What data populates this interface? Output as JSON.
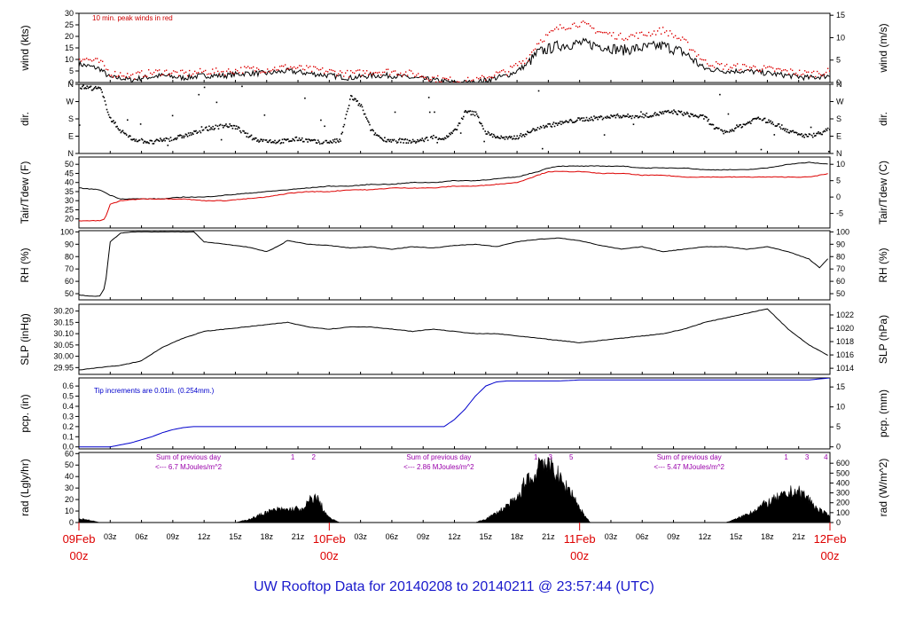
{
  "title": "UW Rooftop Data for 20140208  to  20140211 @ 23:57:44  (UTC)",
  "colors": {
    "main": "#000000",
    "peak": "#dd0000",
    "dew": "#dd0000",
    "precip": "#0000cc",
    "annot_wind": "#cc0000",
    "annot_pcp": "#0000cc",
    "annot_rad": "#9900aa",
    "date": "#dd0000",
    "title": "#1a1acc"
  },
  "x_axis": {
    "range_hours": [
      0,
      72
    ],
    "day_labels": [
      {
        "day": "09Feb",
        "hour": "00z",
        "t": 0
      },
      {
        "day": "10Feb",
        "hour": "00z",
        "t": 24
      },
      {
        "day": "11Feb",
        "hour": "00z",
        "t": 48
      },
      {
        "day": "12Feb",
        "hour": "00z",
        "t": 72
      }
    ],
    "hour_ticks": [
      "03z",
      "06z",
      "09z",
      "12z",
      "15z",
      "18z",
      "21z"
    ]
  },
  "chart_data": [
    {
      "type": "line",
      "name": "wind",
      "ylabel": "wind (kts)",
      "ylabel_right": "wind (m/s)",
      "ylim": [
        0,
        30
      ],
      "yticks": [
        0,
        5,
        10,
        15,
        20,
        25,
        30
      ],
      "yticks_right": [
        0,
        5,
        10,
        15
      ],
      "right_scale": 0.5144,
      "annotation": "10 min. peak winds in red",
      "series": [
        {
          "name": "wind",
          "x": [
            0,
            1,
            2,
            3,
            4,
            5,
            6,
            8,
            10,
            12,
            14,
            16,
            18,
            20,
            22,
            24,
            26,
            28,
            30,
            32,
            34,
            36,
            38,
            40,
            41,
            42,
            43,
            44,
            46,
            48,
            50,
            52,
            54,
            56,
            58,
            60,
            62,
            64,
            66,
            68,
            70,
            72
          ],
          "y": [
            8,
            7,
            6,
            2,
            2,
            1,
            2,
            3,
            2,
            3,
            3,
            4,
            4,
            5,
            4,
            3,
            2,
            3,
            3,
            2,
            1,
            0,
            0,
            2,
            3,
            5,
            8,
            13,
            16,
            17,
            16,
            14,
            15,
            16,
            13,
            6,
            5,
            5,
            4,
            3,
            2,
            3
          ]
        },
        {
          "name": "10 min. peak winds",
          "x": [
            0,
            1,
            2,
            3,
            4,
            5,
            6,
            8,
            10,
            12,
            14,
            16,
            18,
            20,
            22,
            24,
            26,
            28,
            30,
            32,
            34,
            36,
            38,
            40,
            41,
            42,
            43,
            44,
            46,
            48,
            50,
            52,
            54,
            56,
            58,
            60,
            62,
            64,
            66,
            68,
            70,
            72
          ],
          "y": [
            11,
            10,
            9,
            4,
            4,
            3,
            4,
            5,
            4,
            5,
            5,
            6,
            6,
            7,
            6,
            5,
            4,
            5,
            5,
            4,
            2,
            1,
            1,
            4,
            5,
            8,
            11,
            18,
            24,
            26,
            22,
            20,
            21,
            23,
            18,
            9,
            7,
            7,
            6,
            5,
            4,
            5
          ]
        }
      ]
    },
    {
      "type": "scatter",
      "name": "dir",
      "ylabel": "dir.",
      "ylabel_right": "dir.",
      "ylim": [
        0,
        360
      ],
      "ytick_values": [
        0,
        90,
        180,
        270,
        360
      ],
      "ytick_labels": [
        "N",
        "E",
        "S",
        "W",
        "N"
      ],
      "series": [
        {
          "name": "direction",
          "x": [
            0,
            1,
            2,
            3,
            4,
            5,
            6,
            7,
            8,
            9,
            10,
            11,
            12,
            13,
            14,
            15,
            16,
            17,
            18,
            19,
            20,
            21,
            22,
            23,
            24,
            25,
            26,
            27,
            28,
            29,
            30,
            31,
            32,
            33,
            34,
            35,
            36,
            37,
            38,
            39,
            40,
            41,
            42,
            43,
            44,
            45,
            46,
            47,
            48,
            49,
            50,
            51,
            52,
            53,
            54,
            55,
            56,
            57,
            58,
            59,
            60,
            61,
            62,
            63,
            64,
            65,
            66,
            67,
            68,
            69,
            70,
            71,
            72
          ],
          "y": [
            350,
            345,
            340,
            180,
            120,
            80,
            70,
            60,
            75,
            80,
            95,
            110,
            130,
            140,
            150,
            140,
            100,
            75,
            70,
            65,
            70,
            80,
            70,
            60,
            65,
            70,
            300,
            250,
            120,
            80,
            70,
            70,
            65,
            75,
            90,
            80,
            120,
            220,
            210,
            110,
            90,
            80,
            90,
            110,
            140,
            150,
            160,
            170,
            180,
            185,
            190,
            195,
            200,
            195,
            200,
            205,
            215,
            220,
            210,
            200,
            190,
            130,
            110,
            140,
            160,
            190,
            170,
            150,
            120,
            100,
            95,
            110,
            130
          ]
        }
      ]
    },
    {
      "type": "line",
      "name": "temp",
      "ylabel": "Tair/Tdew (F)",
      "ylabel_right": "Tair/Tdew (C)",
      "ylim": [
        15,
        54
      ],
      "yticks": [
        20,
        25,
        30,
        35,
        40,
        45,
        50
      ],
      "ytick_values_right_F": [
        23,
        32,
        41,
        50
      ],
      "yticks_right": [
        -5,
        0,
        5,
        10
      ],
      "series": [
        {
          "name": "Tair",
          "x": [
            0,
            2,
            3,
            4,
            6,
            8,
            10,
            12,
            14,
            16,
            18,
            20,
            22,
            24,
            26,
            28,
            30,
            32,
            34,
            36,
            38,
            40,
            42,
            44,
            45,
            46,
            48,
            50,
            52,
            54,
            56,
            58,
            60,
            62,
            64,
            66,
            68,
            70,
            72
          ],
          "y": [
            37,
            36,
            33,
            31,
            31,
            31,
            32,
            32,
            33,
            34,
            35,
            36,
            37,
            38,
            38,
            39,
            39,
            40,
            40,
            41,
            41,
            42,
            43,
            46,
            48,
            49,
            49,
            49,
            49,
            48,
            48,
            48,
            47,
            47,
            47,
            48,
            50,
            51,
            50
          ]
        },
        {
          "name": "Tdew",
          "x": [
            0,
            2,
            2.5,
            3,
            4,
            6,
            8,
            10,
            12,
            14,
            16,
            18,
            20,
            22,
            24,
            26,
            28,
            30,
            32,
            34,
            36,
            38,
            40,
            42,
            44,
            45,
            46,
            48,
            50,
            52,
            54,
            56,
            58,
            60,
            62,
            64,
            66,
            68,
            70,
            72
          ],
          "y": [
            19,
            19,
            20,
            28,
            30,
            31,
            31,
            31,
            30,
            30,
            31,
            32,
            34,
            35,
            35,
            36,
            36,
            37,
            37,
            37,
            38,
            38,
            39,
            40,
            44,
            46,
            46,
            46,
            45,
            45,
            44,
            44,
            43,
            43,
            43,
            43,
            43,
            43,
            43,
            45
          ]
        }
      ]
    },
    {
      "type": "line",
      "name": "rh",
      "ylabel": "RH (%)",
      "ylabel_right": "RH (%)",
      "ylim": [
        45,
        101
      ],
      "yticks": [
        50,
        60,
        70,
        80,
        90,
        100
      ],
      "series": [
        {
          "name": "RH",
          "x": [
            0,
            1,
            2,
            2.5,
            3,
            4,
            5,
            6,
            8,
            10,
            11,
            12,
            14,
            16,
            18,
            19,
            20,
            22,
            24,
            26,
            28,
            30,
            32,
            34,
            36,
            38,
            40,
            42,
            44,
            46,
            48,
            50,
            52,
            54,
            56,
            58,
            60,
            62,
            64,
            66,
            68,
            70,
            71,
            72
          ],
          "y": [
            49,
            48,
            48,
            55,
            92,
            99,
            100,
            100,
            100,
            100,
            100,
            92,
            90,
            88,
            84,
            88,
            93,
            90,
            89,
            87,
            88,
            86,
            88,
            87,
            89,
            90,
            88,
            92,
            94,
            95,
            93,
            89,
            86,
            88,
            84,
            86,
            88,
            88,
            86,
            88,
            84,
            78,
            71,
            80
          ]
        }
      ]
    },
    {
      "type": "line",
      "name": "slp",
      "ylabel": "SLP (inHg)",
      "ylabel_right": "SLP (hPa)",
      "ylim": [
        29.92,
        30.23
      ],
      "yticks": [
        29.95,
        30.0,
        30.05,
        30.1,
        30.15,
        30.2
      ],
      "ytick_values_right_inhg": [
        29.947,
        30.006,
        30.065,
        30.124,
        30.183
      ],
      "yticks_right": [
        1014,
        1016,
        1018,
        1020,
        1022
      ],
      "series": [
        {
          "name": "SLP",
          "x": [
            0,
            2,
            4,
            6,
            8,
            10,
            12,
            14,
            16,
            18,
            20,
            22,
            24,
            26,
            28,
            30,
            32,
            34,
            36,
            38,
            40,
            42,
            44,
            46,
            48,
            50,
            52,
            54,
            56,
            58,
            60,
            62,
            64,
            66,
            68,
            70,
            72
          ],
          "y": [
            29.94,
            29.95,
            29.96,
            29.98,
            30.04,
            30.08,
            30.11,
            30.12,
            30.13,
            30.14,
            30.15,
            30.13,
            30.12,
            30.13,
            30.13,
            30.12,
            30.11,
            30.12,
            30.11,
            30.1,
            30.1,
            30.09,
            30.08,
            30.07,
            30.06,
            30.07,
            30.08,
            30.09,
            30.1,
            30.12,
            30.15,
            30.17,
            30.19,
            30.21,
            30.12,
            30.05,
            30.0
          ]
        }
      ]
    },
    {
      "type": "line",
      "name": "pcp",
      "ylabel": "pcp. (in)",
      "ylabel_right": "pcp. (mm)",
      "ylim": [
        -0.02,
        0.68
      ],
      "yticks": [
        0.0,
        0.1,
        0.2,
        0.3,
        0.4,
        0.5,
        0.6
      ],
      "ytick_values_right_in": [
        0,
        0.197,
        0.394,
        0.591
      ],
      "yticks_right": [
        0,
        5,
        10,
        15
      ],
      "annotation": "Tip increments are 0.01in. (0.254mm.)",
      "series": [
        {
          "name": "precip",
          "x": [
            0,
            3,
            4,
            5,
            6,
            7,
            8,
            9,
            10,
            11,
            12,
            14,
            16,
            18,
            20,
            22,
            24,
            26,
            28,
            30,
            32,
            34,
            35,
            36,
            37,
            38,
            39,
            40,
            41,
            42,
            44,
            46,
            48,
            50,
            52,
            54,
            56,
            58,
            60,
            62,
            64,
            66,
            68,
            70,
            72
          ],
          "y": [
            0,
            0,
            0.02,
            0.04,
            0.07,
            0.1,
            0.14,
            0.17,
            0.19,
            0.2,
            0.2,
            0.2,
            0.2,
            0.2,
            0.2,
            0.2,
            0.2,
            0.2,
            0.2,
            0.2,
            0.2,
            0.2,
            0.2,
            0.27,
            0.37,
            0.5,
            0.6,
            0.64,
            0.65,
            0.65,
            0.65,
            0.65,
            0.66,
            0.66,
            0.66,
            0.66,
            0.66,
            0.66,
            0.66,
            0.66,
            0.66,
            0.66,
            0.66,
            0.66,
            0.68
          ]
        }
      ]
    },
    {
      "type": "area",
      "name": "rad",
      "ylabel": "rad (Lgly/hr)",
      "ylabel_right": "rad (W/m^2)",
      "ylim": [
        0,
        61
      ],
      "yticks": [
        0,
        10,
        20,
        30,
        40,
        50,
        60
      ],
      "ytick_values_right_lgly": [
        0,
        8.6,
        17.2,
        25.8,
        34.4,
        43.0,
        51.6
      ],
      "yticks_right": [
        0,
        100,
        200,
        300,
        400,
        500,
        600
      ],
      "day_sums": [
        {
          "line1": "Sum of previous day",
          "line2": "<--- 6.7 MJoules/m^2",
          "t": 10.5
        },
        {
          "line1": "Sum of previous day",
          "line2": "<--- 2.86 MJoules/m^2",
          "t": 34.5
        },
        {
          "line1": "Sum of previous day",
          "line2": "<--- 5.47 MJoules/m^2",
          "t": 58.5
        }
      ],
      "hour_marks": [
        {
          "label": "1",
          "t": 20.5
        },
        {
          "label": "2",
          "t": 22.5
        },
        {
          "label": "1",
          "t": 43.8
        },
        {
          "label": "3",
          "t": 45.2
        },
        {
          "label": "5",
          "t": 47.2
        },
        {
          "label": "1",
          "t": 67.8
        },
        {
          "label": "3",
          "t": 69.8
        },
        {
          "label": "4",
          "t": 71.6
        }
      ],
      "series": [
        {
          "name": "radiation",
          "x": [
            0,
            0.5,
            1,
            1.5,
            2,
            15,
            16,
            17,
            18,
            19,
            20,
            21,
            21.5,
            22,
            22.5,
            23,
            23.5,
            24,
            25,
            38,
            39,
            40,
            41,
            42,
            42.5,
            43,
            43.5,
            44,
            44.5,
            45,
            45.5,
            46,
            46.5,
            47,
            47.5,
            48,
            49,
            62,
            63,
            64,
            65,
            66,
            67,
            68,
            68.5,
            69,
            69.5,
            70,
            70.5,
            71,
            71.5,
            72
          ],
          "y": [
            3,
            3,
            2,
            1,
            0,
            0,
            2,
            5,
            9,
            11,
            11,
            12,
            10,
            18,
            22,
            19,
            10,
            4,
            0,
            0,
            3,
            8,
            14,
            20,
            28,
            42,
            34,
            51,
            57,
            45,
            50,
            38,
            32,
            29,
            22,
            12,
            0,
            0,
            3,
            7,
            12,
            17,
            21,
            24,
            28,
            26,
            24,
            20,
            14,
            11,
            8,
            5
          ]
        }
      ]
    }
  ]
}
